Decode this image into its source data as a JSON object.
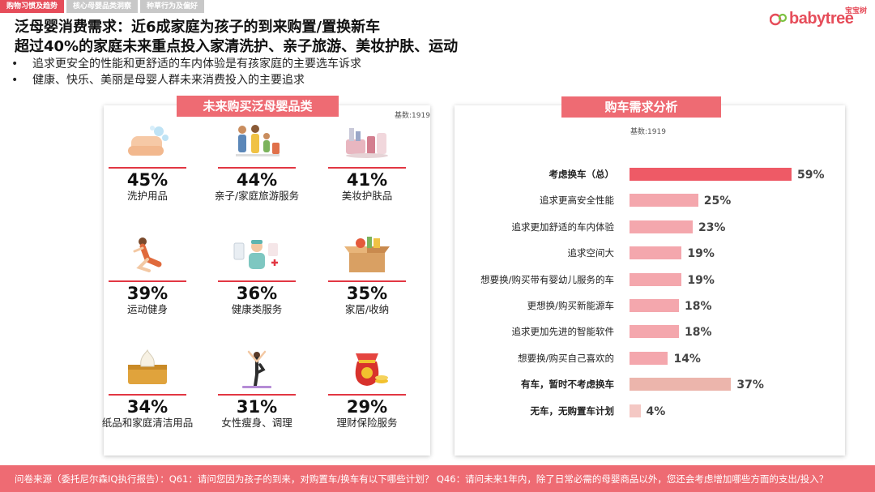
{
  "tabs": [
    {
      "label": "购物习惯及趋势",
      "active": true
    },
    {
      "label": "核心母婴品类洞察",
      "active": false
    },
    {
      "label": "种草行为及偏好",
      "active": false
    }
  ],
  "logo": {
    "cn": "宝宝树",
    "en": "babytree"
  },
  "headline": {
    "line1": "泛母婴消费需求：近6成家庭为孩子的到来购置/置换新车",
    "line2": "超过40%的家庭未来重点投入家清洗护、亲子旅游、美妆护肤、运动"
  },
  "bullets": [
    "追求更安全的性能和更舒适的车内体验是有孩家庭的主要选车诉求",
    "健康、快乐、美丽是母婴人群未来消费投入的主要追求"
  ],
  "left_panel": {
    "title": "未来购买泛母婴品类",
    "base": "基数:1919",
    "categories": [
      {
        "icon": "hand-washing-icon",
        "pct": "45%",
        "label": "洗护用品"
      },
      {
        "icon": "family-travel-icon",
        "pct": "44%",
        "label": "亲子/家庭旅游服务"
      },
      {
        "icon": "cosmetics-icon",
        "pct": "41%",
        "label": "美妆护肤品"
      },
      {
        "icon": "exercise-icon",
        "pct": "39%",
        "label": "运动健身"
      },
      {
        "icon": "doctor-icon",
        "pct": "36%",
        "label": "健康类服务"
      },
      {
        "icon": "storage-box-icon",
        "pct": "35%",
        "label": "家居/收纳"
      },
      {
        "icon": "tissue-box-icon",
        "pct": "34%",
        "label": "纸品和家庭清洁用品"
      },
      {
        "icon": "yoga-icon",
        "pct": "31%",
        "label": "女性瘦身、调理"
      },
      {
        "icon": "money-bag-icon",
        "pct": "29%",
        "label": "理财保险服务"
      }
    ]
  },
  "right_panel": {
    "title": "购车需求分析",
    "base": "基数:1919"
  },
  "chart_data": {
    "type": "bar",
    "orientation": "horizontal",
    "categories": [
      "考虑换车（总）",
      "追求更高安全性能",
      "追求更加舒适的车内体验",
      "追求空间大",
      "想要换/购买带有婴幼儿服务的车",
      "更想换/购买新能源车",
      "追求更加先进的智能软件",
      "想要换/购买自己喜欢的",
      "有车，暂时不考虑换车",
      "无车，无购置车计划"
    ],
    "values": [
      59,
      25,
      23,
      19,
      19,
      18,
      18,
      14,
      37,
      4
    ],
    "value_labels": [
      "59%",
      "25%",
      "23%",
      "19%",
      "19%",
      "18%",
      "18%",
      "14%",
      "37%",
      "4%"
    ],
    "bold": [
      true,
      false,
      false,
      false,
      false,
      false,
      false,
      false,
      true,
      true
    ],
    "colors": [
      "#ee5a66",
      "#f4a7ad",
      "#f4a7ad",
      "#f4a7ad",
      "#f4a7ad",
      "#f4a7ad",
      "#f4a7ad",
      "#f4a7ad",
      "#ecb5ac",
      "#f4c8c4"
    ],
    "xlim": [
      0,
      100
    ],
    "grid": false,
    "legend": "none"
  },
  "footer": {
    "text": "问卷来源（委托尼尔森IQ执行报告）：Q61：请问您因为孩子的到来，对购置车/换车有以下哪些计划？ Q46：请问未来1年内，除了日常必需的母婴商品以外，您还会考虑增加哪些方面的支出/投入？"
  }
}
